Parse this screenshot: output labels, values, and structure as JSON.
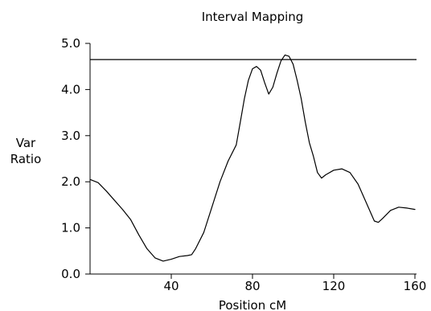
{
  "chart_data": {
    "type": "line",
    "title": "Interval Mapping",
    "xlabel": "Position cM",
    "ylabel": [
      "Var",
      "Ratio"
    ],
    "xlim": [
      0,
      160
    ],
    "ylim": [
      0,
      5
    ],
    "x_ticks": [
      40,
      80,
      120,
      160
    ],
    "x_tick_labels": [
      "40",
      "80",
      "120",
      "160"
    ],
    "y_ticks": [
      0,
      1,
      2,
      3,
      4,
      5
    ],
    "y_tick_labels": [
      "0.0",
      "1.0",
      "2.0",
      "3.0",
      "4.0",
      "5.0"
    ],
    "grid": false,
    "colors": {
      "line": "#000000",
      "threshold": "#000000",
      "background": "#ffffff"
    },
    "threshold": 4.65,
    "series": [
      {
        "x": [
          0,
          4,
          8,
          12,
          16,
          20,
          24,
          28,
          32,
          36,
          40,
          44,
          48,
          50,
          52,
          56,
          60,
          64,
          68,
          72,
          74,
          76,
          78,
          80,
          82,
          84,
          86,
          88,
          90,
          92,
          94,
          96,
          98,
          100,
          102,
          104,
          106,
          108,
          110,
          112,
          114,
          116,
          120,
          124,
          128,
          132,
          136,
          140,
          142,
          144,
          148,
          152,
          156,
          160
        ],
        "y": [
          2.05,
          1.98,
          1.8,
          1.6,
          1.4,
          1.18,
          0.85,
          0.55,
          0.35,
          0.28,
          0.32,
          0.38,
          0.4,
          0.42,
          0.55,
          0.9,
          1.45,
          2.0,
          2.45,
          2.8,
          3.3,
          3.8,
          4.2,
          4.45,
          4.5,
          4.42,
          4.15,
          3.9,
          4.05,
          4.35,
          4.62,
          4.75,
          4.72,
          4.55,
          4.2,
          3.8,
          3.3,
          2.85,
          2.55,
          2.2,
          2.08,
          2.15,
          2.25,
          2.28,
          2.2,
          1.95,
          1.55,
          1.15,
          1.12,
          1.2,
          1.38,
          1.45,
          1.43,
          1.4
        ]
      }
    ]
  }
}
